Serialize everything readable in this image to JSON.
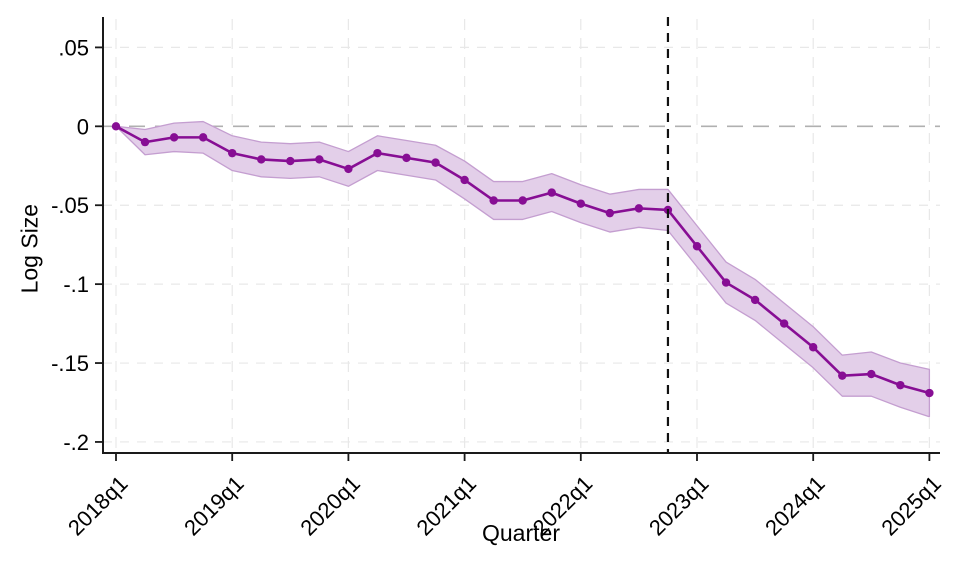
{
  "figure": {
    "xlabel": "Quarter",
    "ylabel": "Log Size"
  },
  "chart_data": {
    "type": "line",
    "title": "",
    "xlabel": "Quarter",
    "ylabel": "Log Size",
    "x": [
      "2018q1",
      "2018q2",
      "2018q3",
      "2018q4",
      "2019q1",
      "2019q2",
      "2019q3",
      "2019q4",
      "2020q1",
      "2020q2",
      "2020q3",
      "2020q4",
      "2021q1",
      "2021q2",
      "2021q3",
      "2021q4",
      "2022q1",
      "2022q2",
      "2022q3",
      "2022q4",
      "2023q1",
      "2023q2",
      "2023q3",
      "2023q4",
      "2024q1",
      "2024q2",
      "2024q3",
      "2024q4",
      "2025q1"
    ],
    "series": [
      {
        "name": "Log Size",
        "values": [
          0,
          -0.01,
          -0.007,
          -0.007,
          -0.017,
          -0.021,
          -0.022,
          -0.021,
          -0.027,
          -0.017,
          -0.02,
          -0.023,
          -0.034,
          -0.047,
          -0.047,
          -0.042,
          -0.049,
          -0.055,
          -0.052,
          -0.053,
          -0.076,
          -0.099,
          -0.11,
          -0.125,
          -0.14,
          -0.158,
          -0.157,
          -0.164,
          -0.169
        ],
        "ci_upper": [
          0,
          -0.002,
          0.002,
          0.003,
          -0.006,
          -0.01,
          -0.011,
          -0.01,
          -0.016,
          -0.006,
          -0.009,
          -0.012,
          -0.022,
          -0.035,
          -0.035,
          -0.03,
          -0.037,
          -0.043,
          -0.04,
          -0.04,
          -0.063,
          -0.086,
          -0.097,
          -0.112,
          -0.127,
          -0.145,
          -0.143,
          -0.15,
          -0.154
        ],
        "ci_lower": [
          0,
          -0.018,
          -0.016,
          -0.017,
          -0.028,
          -0.032,
          -0.033,
          -0.032,
          -0.038,
          -0.028,
          -0.031,
          -0.034,
          -0.046,
          -0.059,
          -0.059,
          -0.054,
          -0.061,
          -0.067,
          -0.064,
          -0.066,
          -0.089,
          -0.112,
          -0.123,
          -0.138,
          -0.153,
          -0.171,
          -0.171,
          -0.178,
          -0.184
        ]
      }
    ],
    "x_tick_labels": [
      "2018q1",
      "2019q1",
      "2020q1",
      "2021q1",
      "2022q1",
      "2023q1",
      "2024q1",
      "2025q1"
    ],
    "x_tick_indices": [
      0,
      4,
      8,
      12,
      16,
      20,
      24,
      28
    ],
    "y_tick_labels": [
      ".05",
      "0",
      "-.05",
      "-.1",
      "-.15",
      "-.2"
    ],
    "y_tick_values": [
      0.05,
      0,
      -0.05,
      -0.1,
      -0.15,
      -0.2
    ],
    "ylim": [
      -0.207,
      0.068
    ],
    "grid": true,
    "legend": "none",
    "zero_line": true,
    "reference_line": {
      "x_label": "2022q4",
      "x_index": 19,
      "style": "dashed"
    },
    "colors": {
      "line": "#870e94",
      "marker": "#870e94",
      "band_fill": "#e3cfe9",
      "band_edge": "#c49ed0",
      "zero_line": "#b0b0b0",
      "gridline": "#e8e8e8",
      "reference_line": "#111111",
      "axis": "#1a1a1a",
      "text": "#000000"
    }
  }
}
